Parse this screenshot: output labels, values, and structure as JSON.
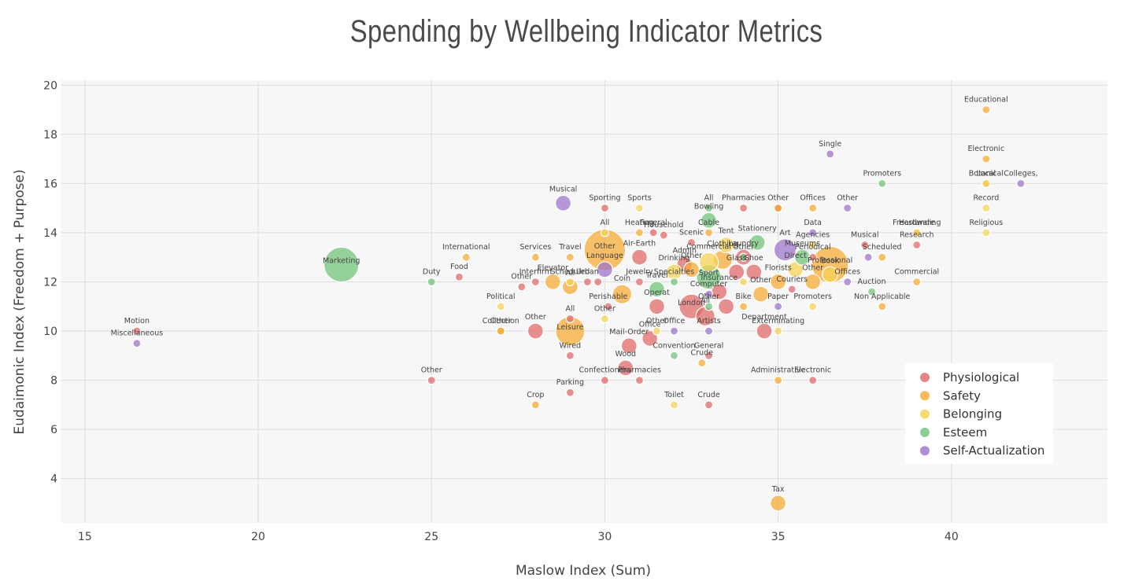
{
  "chart_data": {
    "type": "scatter",
    "title": "Spending by Wellbeing Indicator Metrics",
    "xlabel": "Maslow Index (Sum)",
    "ylabel": "Eudaimonic Index (Freedom + Purpose)",
    "xlim": [
      14.3,
      44.5
    ],
    "ylim": [
      2.2,
      20.2
    ],
    "xticks": [
      15,
      20,
      25,
      30,
      35,
      40
    ],
    "yticks": [
      4,
      6,
      8,
      10,
      12,
      14,
      16,
      18,
      20
    ],
    "grid": true,
    "legend_position": "bottom-right",
    "colors": {
      "Physiological": "#e06666",
      "Safety": "#f6a931",
      "Belonging": "#f7d254",
      "Esteem": "#6fc276",
      "Self-Actualization": "#9b72cb"
    },
    "series": [
      {
        "name": "Physiological",
        "points": [
          {
            "x": 16.5,
            "y": 10.0,
            "size": 1,
            "label": "Motion"
          },
          {
            "x": 25.0,
            "y": 8.0,
            "size": 1,
            "label": "Other"
          },
          {
            "x": 25.8,
            "y": 12.2,
            "size": 1,
            "label": "Food"
          },
          {
            "x": 27.6,
            "y": 11.8,
            "size": 1,
            "label": "Other"
          },
          {
            "x": 28.0,
            "y": 10.0,
            "size": 2,
            "label": "Other"
          },
          {
            "x": 28.0,
            "y": 12.0,
            "size": 1,
            "label": "Interfirm"
          },
          {
            "x": 29.0,
            "y": 7.5,
            "size": 1,
            "label": "Parking"
          },
          {
            "x": 29.0,
            "y": 9.0,
            "size": 1,
            "label": "Wired"
          },
          {
            "x": 29.0,
            "y": 10.5,
            "size": 1,
            "label": "All"
          },
          {
            "x": 29.5,
            "y": 12.0,
            "size": 1,
            "label": "Urban"
          },
          {
            "x": 29.8,
            "y": 12.0,
            "size": 1,
            "label": ""
          },
          {
            "x": 30.0,
            "y": 15.0,
            "size": 1,
            "label": "Sporting"
          },
          {
            "x": 30.0,
            "y": 8.0,
            "size": 1,
            "label": "Confectioners"
          },
          {
            "x": 30.1,
            "y": 11.0,
            "size": 1,
            "label": "Perishable"
          },
          {
            "x": 30.6,
            "y": 8.5,
            "size": 2,
            "label": "Wood"
          },
          {
            "x": 30.7,
            "y": 9.4,
            "size": 2,
            "label": "Mail-Order"
          },
          {
            "x": 31.0,
            "y": 8.0,
            "size": 1,
            "label": "Pharmacies"
          },
          {
            "x": 31.0,
            "y": 12.0,
            "size": 1,
            "label": "Jewelry"
          },
          {
            "x": 31.0,
            "y": 13.0,
            "size": 2,
            "label": "Air-Earth"
          },
          {
            "x": 31.3,
            "y": 9.7,
            "size": 2,
            "label": "Office"
          },
          {
            "x": 31.4,
            "y": 14.0,
            "size": 1,
            "label": "Funeral"
          },
          {
            "x": 31.5,
            "y": 11.0,
            "size": 2,
            "label": "Operat"
          },
          {
            "x": 31.7,
            "y": 13.9,
            "size": 1,
            "label": "Household"
          },
          {
            "x": 32.3,
            "y": 12.7,
            "size": 2,
            "label": "Admin"
          },
          {
            "x": 32.5,
            "y": 13.6,
            "size": 1,
            "label": "Scenic"
          },
          {
            "x": 32.5,
            "y": 11.0,
            "size": 5,
            "label": "London"
          },
          {
            "x": 32.9,
            "y": 10.6,
            "size": 3,
            "label": "All"
          },
          {
            "x": 33.0,
            "y": 7.0,
            "size": 1,
            "label": "Crude"
          },
          {
            "x": 33.0,
            "y": 9.0,
            "size": 1,
            "label": "General"
          },
          {
            "x": 33.3,
            "y": 11.6,
            "size": 2,
            "label": "Insurance"
          },
          {
            "x": 33.5,
            "y": 11.0,
            "size": 2,
            "label": ""
          },
          {
            "x": 33.8,
            "y": 12.4,
            "size": 2,
            "label": "Glass"
          },
          {
            "x": 34.0,
            "y": 15.0,
            "size": 1,
            "label": "Pharmacies"
          },
          {
            "x": 34.0,
            "y": 13.0,
            "size": 2,
            "label": "Laundry"
          },
          {
            "x": 34.3,
            "y": 12.4,
            "size": 2,
            "label": "Shoe"
          },
          {
            "x": 34.6,
            "y": 10.0,
            "size": 2,
            "label": "Department"
          },
          {
            "x": 35.0,
            "y": 15.0,
            "size": 1,
            "label": "Other"
          },
          {
            "x": 35.4,
            "y": 11.7,
            "size": 1,
            "label": "Couriers"
          },
          {
            "x": 36.0,
            "y": 13.0,
            "size": 1,
            "label": "Periodical"
          },
          {
            "x": 36.0,
            "y": 8.0,
            "size": 1,
            "label": "Electronic"
          },
          {
            "x": 37.5,
            "y": 13.5,
            "size": 1,
            "label": "Musical"
          },
          {
            "x": 39.0,
            "y": 13.5,
            "size": 1,
            "label": "Research"
          }
        ]
      },
      {
        "name": "Safety",
        "points": [
          {
            "x": 26.0,
            "y": 13.0,
            "size": 1,
            "label": "International"
          },
          {
            "x": 27.0,
            "y": 10.0,
            "size": 1,
            "label": "Collection"
          },
          {
            "x": 27.0,
            "y": 10.0,
            "size": 1,
            "label": "Other"
          },
          {
            "x": 28.0,
            "y": 7.0,
            "size": 1,
            "label": "Crop"
          },
          {
            "x": 28.0,
            "y": 13.0,
            "size": 1,
            "label": "Services"
          },
          {
            "x": 28.5,
            "y": 12.0,
            "size": 2,
            "label": "Elevator"
          },
          {
            "x": 29.0,
            "y": 13.0,
            "size": 1,
            "label": "Travel"
          },
          {
            "x": 29.0,
            "y": 10.0,
            "size": 7,
            "label": "Leisure"
          },
          {
            "x": 29.0,
            "y": 11.8,
            "size": 2,
            "label": "All"
          },
          {
            "x": 30.0,
            "y": 13.3,
            "size": 14,
            "label": "Other"
          },
          {
            "x": 30.5,
            "y": 11.5,
            "size": 3,
            "label": "Coin"
          },
          {
            "x": 31.0,
            "y": 14.0,
            "size": 1,
            "label": "Heating"
          },
          {
            "x": 32.5,
            "y": 12.5,
            "size": 2,
            "label": "Other"
          },
          {
            "x": 32.8,
            "y": 8.7,
            "size": 1,
            "label": "Crude"
          },
          {
            "x": 33.0,
            "y": 14.0,
            "size": 1,
            "label": "Cable"
          },
          {
            "x": 33.4,
            "y": 12.9,
            "size": 3,
            "label": "Clothing"
          },
          {
            "x": 34.0,
            "y": 11.0,
            "size": 1,
            "label": "Bike"
          },
          {
            "x": 34.5,
            "y": 11.5,
            "size": 2,
            "label": "Other"
          },
          {
            "x": 35.0,
            "y": 3.0,
            "size": 2,
            "label": "Tax"
          },
          {
            "x": 35.0,
            "y": 8.0,
            "size": 1,
            "label": "Administrative"
          },
          {
            "x": 35.0,
            "y": 12.0,
            "size": 2,
            "label": "Florists"
          },
          {
            "x": 35.0,
            "y": 15.0,
            "size": 1,
            "label": ""
          },
          {
            "x": 36.0,
            "y": 15.0,
            "size": 1,
            "label": "Offices"
          },
          {
            "x": 36.0,
            "y": 12.0,
            "size": 2,
            "label": "Other"
          },
          {
            "x": 36.5,
            "y": 12.7,
            "size": 11,
            "label": "Book"
          },
          {
            "x": 38.0,
            "y": 11.0,
            "size": 1,
            "label": "Non Applicable"
          },
          {
            "x": 38.0,
            "y": 13.0,
            "size": 1,
            "label": "Scheduled"
          },
          {
            "x": 39.0,
            "y": 12.0,
            "size": 1,
            "label": "Commercial"
          },
          {
            "x": 39.0,
            "y": 14.0,
            "size": 1,
            "label": "Hardware"
          },
          {
            "x": 41.0,
            "y": 19.0,
            "size": 1,
            "label": "Educational"
          },
          {
            "x": 41.0,
            "y": 17.0,
            "size": 1,
            "label": "Electronic"
          },
          {
            "x": 41.0,
            "y": 16.0,
            "size": 1,
            "label": "Botanical"
          }
        ]
      },
      {
        "name": "Belonging",
        "points": [
          {
            "x": 27.0,
            "y": 11.0,
            "size": 1,
            "label": "Political"
          },
          {
            "x": 29.0,
            "y": 12.0,
            "size": 1,
            "label": "Scheduled"
          },
          {
            "x": 30.0,
            "y": 10.5,
            "size": 1,
            "label": "Other"
          },
          {
            "x": 30.0,
            "y": 14.0,
            "size": 1,
            "label": "All"
          },
          {
            "x": 31.0,
            "y": 15.0,
            "size": 1,
            "label": "Sports"
          },
          {
            "x": 31.5,
            "y": 10.0,
            "size": 1,
            "label": "Other"
          },
          {
            "x": 32.0,
            "y": 7.0,
            "size": 1,
            "label": "Toilet"
          },
          {
            "x": 32.0,
            "y": 12.4,
            "size": 2,
            "label": "Drinking"
          },
          {
            "x": 33.0,
            "y": 12.8,
            "size": 3,
            "label": "Commercial"
          },
          {
            "x": 33.5,
            "y": 13.5,
            "size": 2,
            "label": "Tent"
          },
          {
            "x": 34.0,
            "y": 12.0,
            "size": 1,
            "label": ""
          },
          {
            "x": 35.0,
            "y": 10.0,
            "size": 1,
            "label": "Exterminating"
          },
          {
            "x": 35.5,
            "y": 12.5,
            "size": 2,
            "label": "Direct"
          },
          {
            "x": 36.0,
            "y": 11.0,
            "size": 1,
            "label": "Promoters"
          },
          {
            "x": 36.0,
            "y": 13.5,
            "size": 1,
            "label": "Agencies"
          },
          {
            "x": 36.5,
            "y": 12.3,
            "size": 2,
            "label": "Professional"
          },
          {
            "x": 41.0,
            "y": 15.0,
            "size": 1,
            "label": "Record"
          },
          {
            "x": 41.0,
            "y": 14.0,
            "size": 1,
            "label": "Religious"
          },
          {
            "x": 41.0,
            "y": 16.0,
            "size": 1,
            "label": "Local"
          },
          {
            "x": 39.0,
            "y": 14.0,
            "size": 1,
            "label": "Freestanding"
          }
        ]
      },
      {
        "name": "Esteem",
        "points": [
          {
            "x": 22.4,
            "y": 12.7,
            "size": 10,
            "label": "Marketing"
          },
          {
            "x": 25.0,
            "y": 12.0,
            "size": 1,
            "label": "Duty"
          },
          {
            "x": 31.5,
            "y": 11.7,
            "size": 2,
            "label": "Travel"
          },
          {
            "x": 32.0,
            "y": 9.0,
            "size": 1,
            "label": "Convention"
          },
          {
            "x": 32.0,
            "y": 12.0,
            "size": 1,
            "label": "Specialties"
          },
          {
            "x": 33.0,
            "y": 12.2,
            "size": 5,
            "label": "Sport"
          },
          {
            "x": 33.0,
            "y": 14.5,
            "size": 2,
            "label": "Bowling"
          },
          {
            "x": 33.0,
            "y": 15.0,
            "size": 1,
            "label": "All"
          },
          {
            "x": 33.0,
            "y": 11.0,
            "size": 1,
            "label": "Other"
          },
          {
            "x": 34.0,
            "y": 13.0,
            "size": 1,
            "label": "Other"
          },
          {
            "x": 34.4,
            "y": 13.6,
            "size": 2,
            "label": "Stationery"
          },
          {
            "x": 35.7,
            "y": 13.0,
            "size": 2,
            "label": "Museums"
          },
          {
            "x": 37.7,
            "y": 11.6,
            "size": 1,
            "label": "Auction"
          },
          {
            "x": 38.0,
            "y": 16.0,
            "size": 1,
            "label": "Promoters"
          }
        ]
      },
      {
        "name": "Self-Actualization",
        "points": [
          {
            "x": 16.5,
            "y": 9.5,
            "size": 1,
            "label": "Miscellaneous"
          },
          {
            "x": 28.8,
            "y": 15.2,
            "size": 2,
            "label": "Musical"
          },
          {
            "x": 30.0,
            "y": 12.5,
            "size": 2,
            "label": "Language"
          },
          {
            "x": 32.0,
            "y": 10.0,
            "size": 1,
            "label": "Office"
          },
          {
            "x": 33.0,
            "y": 10.0,
            "size": 1,
            "label": "Artists"
          },
          {
            "x": 33.0,
            "y": 11.5,
            "size": 1,
            "label": "Computer"
          },
          {
            "x": 35.0,
            "y": 11.0,
            "size": 1,
            "label": "Paper"
          },
          {
            "x": 35.2,
            "y": 13.3,
            "size": 4,
            "label": "Art"
          },
          {
            "x": 36.0,
            "y": 14.0,
            "size": 1,
            "label": "Data"
          },
          {
            "x": 36.5,
            "y": 17.2,
            "size": 1,
            "label": "Single"
          },
          {
            "x": 37.0,
            "y": 15.0,
            "size": 1,
            "label": "Other"
          },
          {
            "x": 37.0,
            "y": 12.0,
            "size": 1,
            "label": "Offices"
          },
          {
            "x": 37.6,
            "y": 13.0,
            "size": 1,
            "label": ""
          },
          {
            "x": 42.0,
            "y": 16.0,
            "size": 1,
            "label": "Colleges,"
          }
        ]
      }
    ]
  }
}
